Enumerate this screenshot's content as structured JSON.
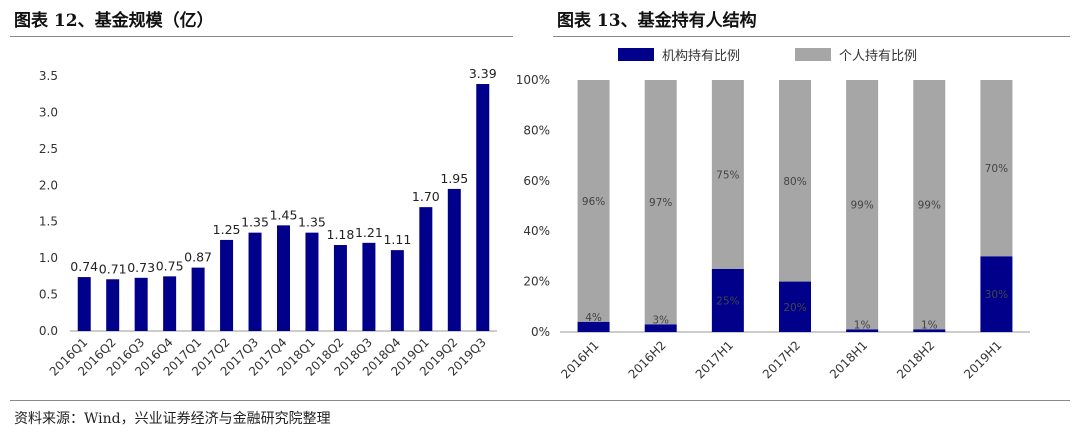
{
  "left_title": "图表 12、基金规模（亿）",
  "right_title": "图表 13、基金持有人结构",
  "source": "资料来源：Wind，兴业证券经济与金融研究院整理",
  "chart_data": [
    {
      "type": "bar",
      "title": "图表 12、基金规模（亿）",
      "categories": [
        "2016Q1",
        "2016Q2",
        "2016Q3",
        "2016Q4",
        "2017Q1",
        "2017Q2",
        "2017Q3",
        "2017Q4",
        "2018Q1",
        "2018Q2",
        "2018Q3",
        "2018Q4",
        "2019Q1",
        "2019Q2",
        "2019Q3"
      ],
      "values": [
        0.74,
        0.71,
        0.73,
        0.75,
        0.87,
        1.25,
        1.35,
        1.45,
        1.35,
        1.18,
        1.21,
        1.11,
        1.7,
        1.95,
        3.39
      ],
      "labels": [
        "0.74",
        "0.71",
        "0.73",
        "0.75",
        "0.87",
        "1.25",
        "1.35",
        "1.45",
        "1.35",
        "1.18",
        "1.21",
        "1.11",
        "1.70",
        "1.95",
        "3.39"
      ],
      "yticks": [
        "0.0",
        "0.5",
        "1.0",
        "1.5",
        "2.0",
        "2.5",
        "3.0",
        "3.5"
      ],
      "ylim": [
        0,
        3.5
      ],
      "color": "#00008b"
    },
    {
      "type": "bar",
      "stacked": true,
      "title": "图表 13、基金持有人结构",
      "categories": [
        "2016H1",
        "2016H2",
        "2017H1",
        "2017H2",
        "2018H1",
        "2018H2",
        "2019H1"
      ],
      "series": [
        {
          "name": "机构持有比例",
          "values": [
            4,
            3,
            25,
            20,
            1,
            1,
            30
          ],
          "labels": [
            "4%",
            "3%",
            "25%",
            "20%",
            "1%",
            "1%",
            "30%"
          ],
          "color": "#00008b"
        },
        {
          "name": "个人持有比例",
          "values": [
            96,
            97,
            75,
            80,
            99,
            99,
            70
          ],
          "labels": [
            "96%",
            "97%",
            "75%",
            "80%",
            "99%",
            "99%",
            "70%"
          ],
          "color": "#a6a6a6"
        }
      ],
      "yticks": [
        "0%",
        "20%",
        "40%",
        "60%",
        "80%",
        "100%"
      ],
      "ylim": [
        0,
        100
      ],
      "legend": "top"
    }
  ]
}
